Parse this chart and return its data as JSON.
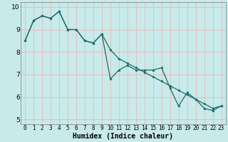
{
  "title": "",
  "xlabel": "Humidex (Indice chaleur)",
  "bg_color": "#c8eaea",
  "line_color": "#1a6b6b",
  "grid_color": "#e8b8b8",
  "x_values": [
    0,
    1,
    2,
    3,
    4,
    5,
    6,
    7,
    8,
    9,
    10,
    11,
    12,
    13,
    14,
    15,
    16,
    17,
    18,
    19,
    20,
    21,
    22,
    23
  ],
  "series1": [
    8.5,
    9.4,
    9.6,
    9.5,
    9.8,
    9.0,
    9.0,
    8.5,
    8.4,
    8.8,
    6.8,
    7.2,
    7.4,
    7.2,
    7.2,
    7.2,
    7.3,
    6.4,
    5.6,
    6.2,
    5.9,
    5.5,
    5.4,
    5.6
  ],
  "series2": [
    8.5,
    9.4,
    9.6,
    9.5,
    9.8,
    9.0,
    9.0,
    8.5,
    8.4,
    8.8,
    8.1,
    7.7,
    7.5,
    7.3,
    7.1,
    6.9,
    6.7,
    6.5,
    6.3,
    6.1,
    5.9,
    5.7,
    5.5,
    5.6
  ],
  "ylim": [
    4.8,
    10.2
  ],
  "xlim": [
    -0.5,
    23.5
  ],
  "yticks": [
    5,
    6,
    7,
    8,
    9,
    10
  ],
  "xticks": [
    0,
    1,
    2,
    3,
    4,
    5,
    6,
    7,
    8,
    9,
    10,
    11,
    12,
    13,
    14,
    15,
    16,
    17,
    18,
    19,
    20,
    21,
    22,
    23
  ],
  "tick_fontsize": 5.5,
  "xlabel_fontsize": 7,
  "marker_size": 2.5,
  "linewidth": 0.9
}
